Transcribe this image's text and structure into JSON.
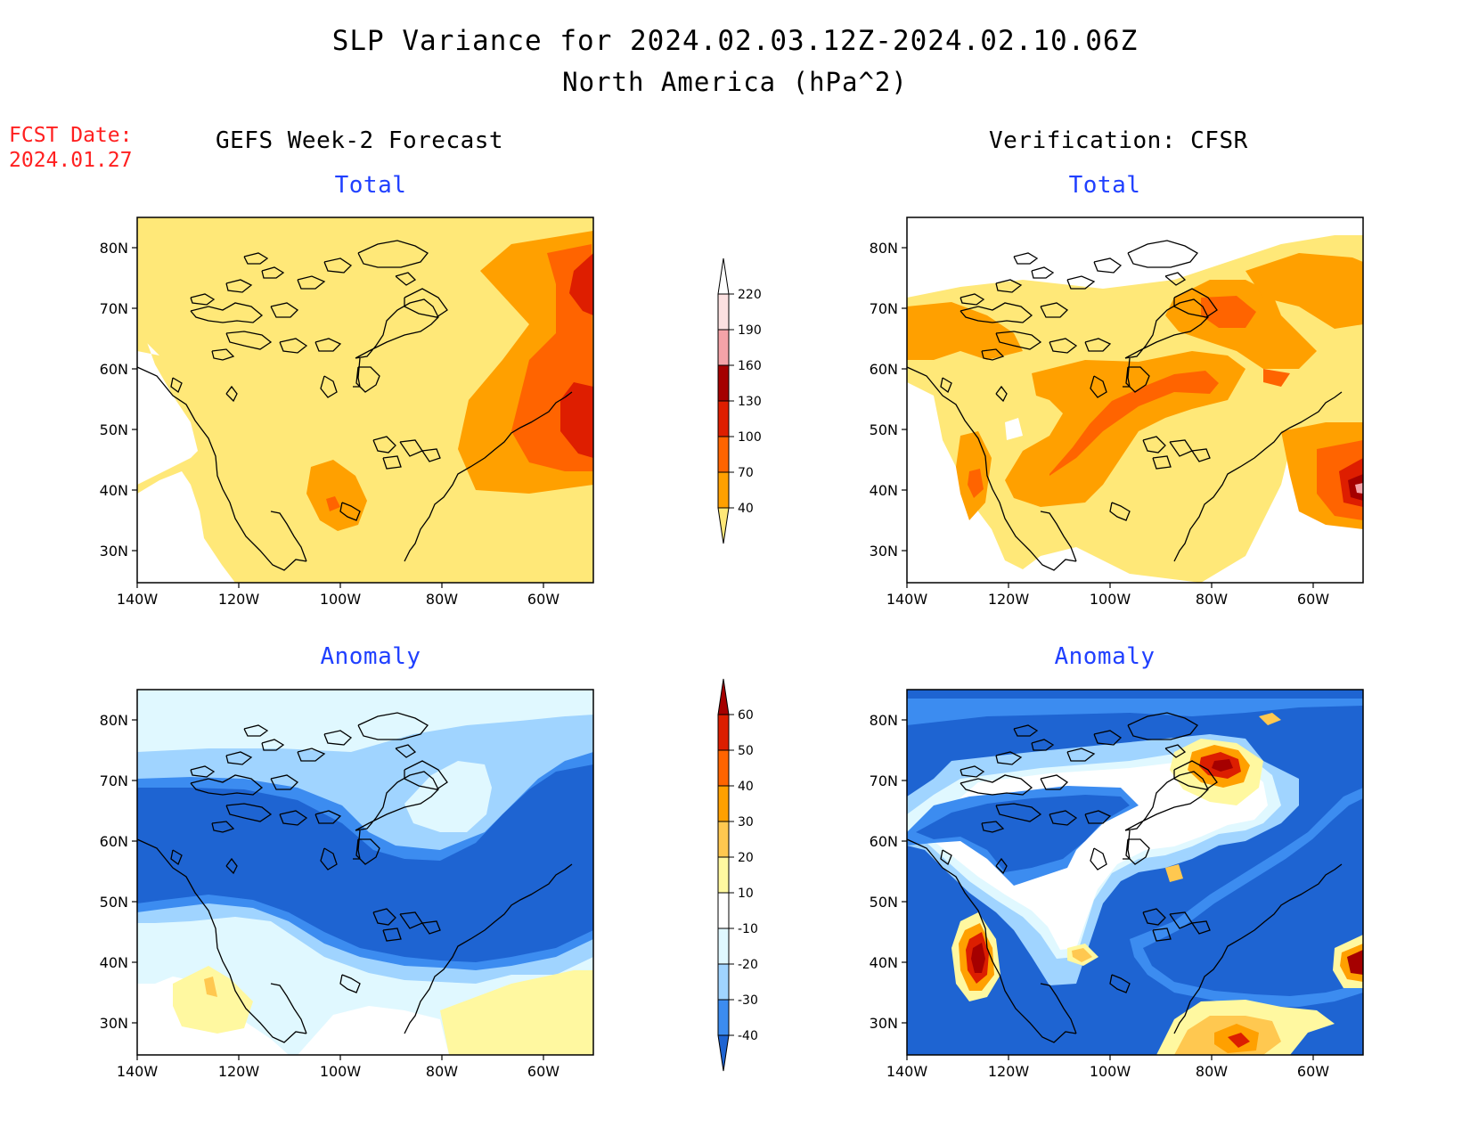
{
  "header": {
    "title_line1": "SLP Variance for 2024.02.03.12Z-2024.02.10.06Z",
    "title_line2": "North America (hPa^2)",
    "fcst_label": "FCST Date:",
    "fcst_date": "2024.01.27"
  },
  "columns": {
    "left_title": "GEFS Week-2 Forecast",
    "right_title": "Verification: CFSR"
  },
  "panels": [
    {
      "id": "forecast-total",
      "subtitle": "Total"
    },
    {
      "id": "verification-total",
      "subtitle": "Total"
    },
    {
      "id": "forecast-anomaly",
      "subtitle": "Anomaly"
    },
    {
      "id": "verification-anomaly",
      "subtitle": "Anomaly"
    }
  ],
  "axes": {
    "lat_labels": [
      "80N",
      "70N",
      "60N",
      "50N",
      "40N",
      "30N"
    ],
    "lon_labels": [
      "140W",
      "120W",
      "100W",
      "80W",
      "60W"
    ]
  },
  "colorbars": {
    "total": {
      "labels": [
        "220",
        "190",
        "160",
        "130",
        "100",
        "70",
        "40"
      ],
      "colors": [
        "#ffffff",
        "#fce1e1",
        "#f4a3a8",
        "#a50000",
        "#de1e00",
        "#ff6400",
        "#ffa000",
        "#ffe878"
      ]
    },
    "anomaly": {
      "labels": [
        "60",
        "50",
        "40",
        "30",
        "20",
        "10",
        "-10",
        "-20",
        "-30",
        "-40"
      ],
      "colors": [
        "#a50000",
        "#dc1e00",
        "#ff6400",
        "#ffa000",
        "#ffc850",
        "#fff8a0",
        "#ffffff",
        "#e0f8ff",
        "#a0d4ff",
        "#3c8cf0",
        "#1e64d2"
      ]
    }
  }
}
